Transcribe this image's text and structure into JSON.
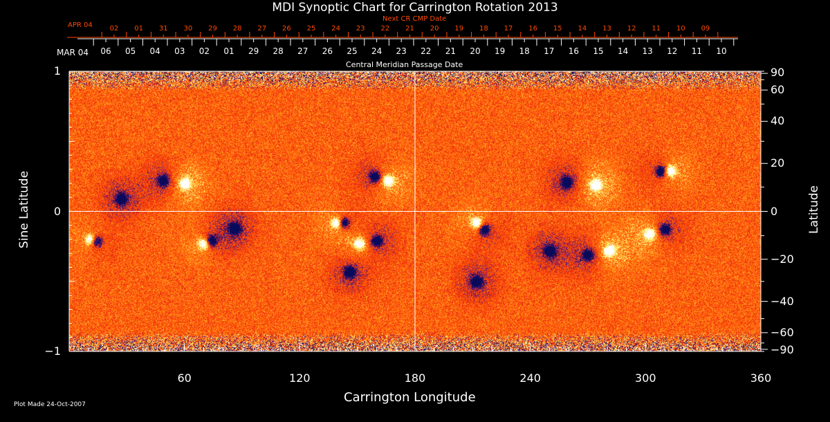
{
  "chart_data": {
    "type": "heatmap",
    "title": "MDI Synoptic Chart for Carrington Rotation 2013",
    "xlabel": "Carrington Longitude",
    "ylabel_left": "Sine Latitude",
    "ylabel_right": "Latitude",
    "xlim": [
      0,
      360
    ],
    "ylim": [
      -1,
      1
    ],
    "x_ticks": [
      "60",
      "120",
      "180",
      "240",
      "300",
      "360"
    ],
    "y_ticks_left": [
      "1",
      "0",
      "−1"
    ],
    "y_ticks_right": [
      "90",
      "60",
      "40",
      "20",
      "0",
      "−20",
      "−40",
      "−60",
      "−90"
    ],
    "y_tick_values_right": [
      90,
      60,
      40,
      20,
      0,
      -20,
      -40,
      -60,
      -90
    ],
    "top_axis": {
      "label": "Central Meridian Passage Date",
      "start_label": "MAR 04",
      "dates": [
        "06",
        "05",
        "04",
        "03",
        "02",
        "01",
        "29",
        "28",
        "27",
        "26",
        "25",
        "24",
        "23",
        "22",
        "21",
        "20",
        "19",
        "18",
        "17",
        "16",
        "15",
        "14",
        "13",
        "12",
        "11",
        "10"
      ]
    },
    "next_axis": {
      "label": "Next CR CMP Date",
      "start_label": "APR 04",
      "dates": [
        "02",
        "01",
        "31",
        "30",
        "29",
        "28",
        "27",
        "26",
        "25",
        "24",
        "23",
        "22",
        "21",
        "20",
        "19",
        "18",
        "17",
        "16",
        "15",
        "14",
        "13",
        "12",
        "11",
        "10",
        "09"
      ],
      "color": "#ff4a00"
    },
    "colors": {
      "background_field": "#ff4a10",
      "positive": "#ffffff",
      "negative": "#0a0a60"
    },
    "active_regions": [
      {
        "lon": 60,
        "sinlat": 0.2,
        "polarity": "positive"
      },
      {
        "lon": 49,
        "sinlat": 0.22,
        "polarity": "negative"
      },
      {
        "lon": 27,
        "sinlat": 0.09,
        "polarity": "negative"
      },
      {
        "lon": 159,
        "sinlat": 0.25,
        "polarity": "negative"
      },
      {
        "lon": 166,
        "sinlat": 0.22,
        "polarity": "positive"
      },
      {
        "lon": 139,
        "sinlat": -0.08,
        "polarity": "positive"
      },
      {
        "lon": 143,
        "sinlat": -0.08,
        "polarity": "negative"
      },
      {
        "lon": 70,
        "sinlat": -0.23,
        "polarity": "positive"
      },
      {
        "lon": 74,
        "sinlat": -0.21,
        "polarity": "negative"
      },
      {
        "lon": 86,
        "sinlat": -0.12,
        "polarity": "negative"
      },
      {
        "lon": 14,
        "sinlat": -0.21,
        "polarity": "negative"
      },
      {
        "lon": 11,
        "sinlat": -0.2,
        "polarity": "positive"
      },
      {
        "lon": 151,
        "sinlat": -0.23,
        "polarity": "positive"
      },
      {
        "lon": 160,
        "sinlat": -0.21,
        "polarity": "negative"
      },
      {
        "lon": 146,
        "sinlat": -0.43,
        "polarity": "negative"
      },
      {
        "lon": 216,
        "sinlat": -0.13,
        "polarity": "negative"
      },
      {
        "lon": 212,
        "sinlat": -0.08,
        "polarity": "positive"
      },
      {
        "lon": 308,
        "sinlat": 0.29,
        "polarity": "negative"
      },
      {
        "lon": 313,
        "sinlat": 0.29,
        "polarity": "positive"
      },
      {
        "lon": 274,
        "sinlat": 0.19,
        "polarity": "positive"
      },
      {
        "lon": 259,
        "sinlat": 0.21,
        "polarity": "negative"
      },
      {
        "lon": 310,
        "sinlat": -0.13,
        "polarity": "negative"
      },
      {
        "lon": 302,
        "sinlat": -0.16,
        "polarity": "positive"
      },
      {
        "lon": 270,
        "sinlat": -0.31,
        "polarity": "negative"
      },
      {
        "lon": 281,
        "sinlat": -0.28,
        "polarity": "positive"
      },
      {
        "lon": 250,
        "sinlat": -0.28,
        "polarity": "negative"
      },
      {
        "lon": 212,
        "sinlat": -0.5,
        "polarity": "negative"
      }
    ]
  },
  "footer": {
    "plot_made": "Plot Made 24-Oct-2007"
  }
}
